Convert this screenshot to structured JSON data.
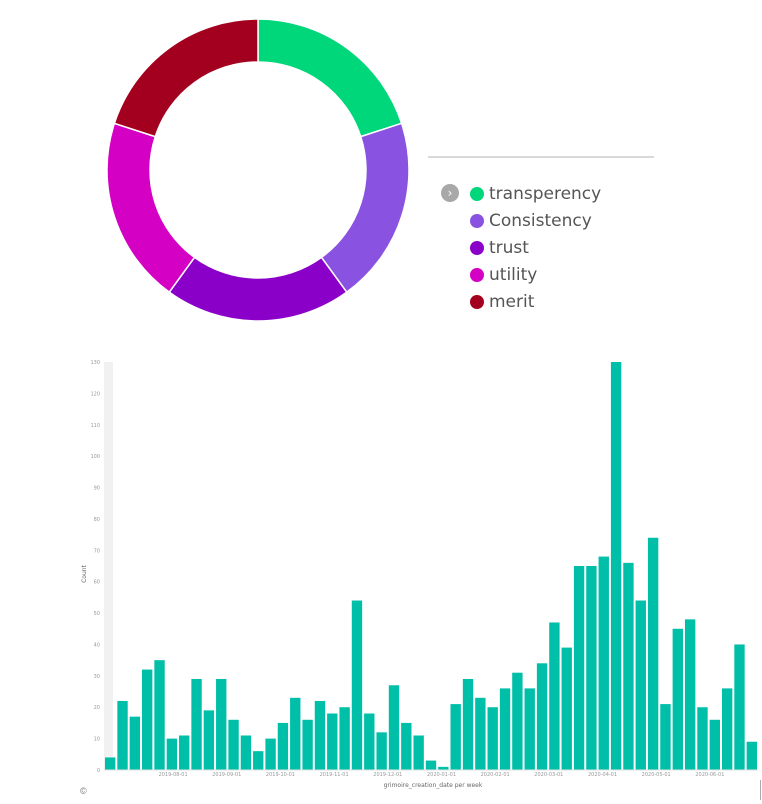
{
  "chart_data": [
    {
      "type": "pie",
      "donut": true,
      "categories": [
        "transperency",
        "Consistency",
        "trust",
        "utility",
        "merit"
      ],
      "values": [
        20,
        20,
        20,
        20,
        20
      ],
      "colors": [
        "#00d67a",
        "#8a52e0",
        "#8a00c8",
        "#d400c4",
        "#a3001f"
      ],
      "legend_position": "right"
    },
    {
      "type": "bar",
      "xlabel": "grimoire_creation_date per week",
      "ylabel": "Count",
      "ylim": [
        0,
        130
      ],
      "yticks": [
        0,
        10,
        20,
        30,
        40,
        50,
        60,
        70,
        80,
        90,
        100,
        110,
        120,
        130
      ],
      "xtick_labels": [
        "2019-08-01",
        "2019-09-01",
        "2019-10-01",
        "2019-11-01",
        "2019-12-01",
        "2020-01-01",
        "2020-02-01",
        "2020-03-01",
        "2020-04-01",
        "2020-05-01",
        "2020-06-01"
      ],
      "values": [
        4,
        22,
        17,
        32,
        35,
        10,
        11,
        29,
        19,
        29,
        16,
        11,
        6,
        10,
        15,
        23,
        16,
        22,
        18,
        20,
        54,
        18,
        12,
        27,
        15,
        11,
        3,
        1,
        21,
        29,
        23,
        20,
        26,
        31,
        26,
        34,
        47,
        39,
        65,
        65,
        68,
        130,
        66,
        54,
        74,
        21,
        45,
        48,
        20,
        16,
        26,
        40,
        9
      ],
      "color": "#00bfa8",
      "grid": false
    }
  ],
  "legend": {
    "toggle_icon": "chevron-right-icon"
  },
  "footer": {
    "icon": "copyright-icon",
    "glyph": "©"
  }
}
